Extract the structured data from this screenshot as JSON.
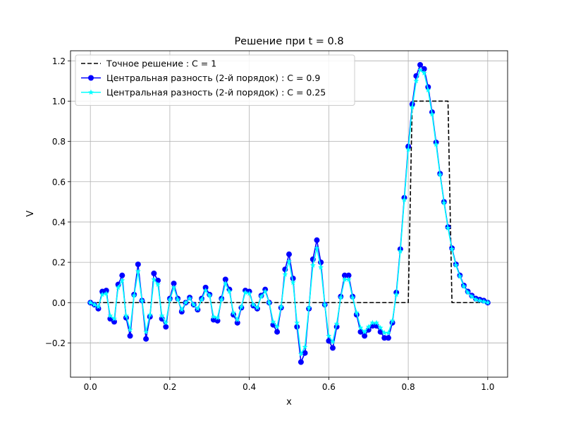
{
  "chart_data": {
    "type": "line",
    "title": "Решение при t = 0.8",
    "xlabel": "x",
    "ylabel": "V",
    "xlim": [
      -0.05,
      1.05
    ],
    "ylim": [
      -0.37,
      1.25
    ],
    "xticks": [
      0.0,
      0.2,
      0.4,
      0.6,
      0.8,
      1.0
    ],
    "xtick_labels": [
      "0.0",
      "0.2",
      "0.4",
      "0.6",
      "0.8",
      "1.0"
    ],
    "yticks": [
      -0.2,
      0.0,
      0.2,
      0.4,
      0.6,
      0.8,
      1.0,
      1.2
    ],
    "ytick_labels": [
      "−0.2",
      "0.0",
      "0.2",
      "0.4",
      "0.6",
      "0.8",
      "1.0",
      "1.2"
    ],
    "grid": true,
    "legend_position": "top-left",
    "series": [
      {
        "name": "Точное решение : C = 1",
        "color": "#000000",
        "style": "dashed",
        "marker": "none",
        "x": [
          0.0,
          0.8,
          0.81,
          0.9,
          0.91,
          1.0
        ],
        "y": [
          0.0,
          0.0,
          1.0,
          1.0,
          0.0,
          0.0
        ]
      },
      {
        "name": "Центральная разность (2-й порядок) : C = 0.9",
        "color": "#0000ff",
        "style": "solid",
        "marker": "circle",
        "x": [
          0.0,
          0.01,
          0.02,
          0.03,
          0.04,
          0.05,
          0.06,
          0.07,
          0.08,
          0.09,
          0.1,
          0.11,
          0.12,
          0.13,
          0.14,
          0.15,
          0.16,
          0.17,
          0.18,
          0.19,
          0.2,
          0.21,
          0.22,
          0.23,
          0.24,
          0.25,
          0.26,
          0.27,
          0.28,
          0.29,
          0.3,
          0.31,
          0.32,
          0.33,
          0.34,
          0.35,
          0.36,
          0.37,
          0.38,
          0.39,
          0.4,
          0.41,
          0.42,
          0.43,
          0.44,
          0.45,
          0.46,
          0.47,
          0.48,
          0.49,
          0.5,
          0.51,
          0.52,
          0.53,
          0.54,
          0.55,
          0.56,
          0.57,
          0.58,
          0.59,
          0.6,
          0.61,
          0.62,
          0.63,
          0.64,
          0.65,
          0.66,
          0.67,
          0.68,
          0.69,
          0.7,
          0.71,
          0.72,
          0.73,
          0.74,
          0.75,
          0.76,
          0.77,
          0.78,
          0.79,
          0.8,
          0.81,
          0.82,
          0.83,
          0.84,
          0.85,
          0.86,
          0.87,
          0.88,
          0.89,
          0.9,
          0.91,
          0.92,
          0.93,
          0.94,
          0.95,
          0.96,
          0.97,
          0.98,
          0.99,
          1.0
        ],
        "y": [
          0.0,
          -0.01,
          -0.03,
          0.055,
          0.06,
          -0.08,
          -0.095,
          0.09,
          0.135,
          -0.075,
          -0.165,
          0.04,
          0.19,
          0.01,
          -0.18,
          -0.07,
          0.145,
          0.11,
          -0.08,
          -0.12,
          0.02,
          0.095,
          0.02,
          -0.045,
          0.0,
          0.025,
          -0.01,
          -0.035,
          0.02,
          0.075,
          0.04,
          -0.085,
          -0.09,
          0.02,
          0.115,
          0.065,
          -0.06,
          -0.1,
          -0.025,
          0.06,
          0.055,
          -0.015,
          -0.03,
          0.035,
          0.065,
          0.0,
          -0.11,
          -0.145,
          -0.025,
          0.165,
          0.24,
          0.12,
          -0.12,
          -0.295,
          -0.25,
          -0.03,
          0.215,
          0.31,
          0.2,
          -0.01,
          -0.19,
          -0.225,
          -0.12,
          0.03,
          0.135,
          0.135,
          0.03,
          -0.06,
          -0.145,
          -0.165,
          -0.135,
          -0.115,
          -0.115,
          -0.145,
          -0.175,
          -0.175,
          -0.1,
          0.05,
          0.265,
          0.52,
          0.775,
          0.985,
          1.125,
          1.18,
          1.16,
          1.07,
          0.945,
          0.795,
          0.64,
          0.5,
          0.375,
          0.27,
          0.19,
          0.135,
          0.085,
          0.055,
          0.035,
          0.02,
          0.015,
          0.01,
          0.0
        ]
      },
      {
        "name": "Центральная разность (2-й порядок) : C = 0.25",
        "color": "#00ffff",
        "style": "solid",
        "marker": "star",
        "x": [
          0.0,
          0.01,
          0.02,
          0.03,
          0.04,
          0.05,
          0.06,
          0.07,
          0.08,
          0.09,
          0.1,
          0.11,
          0.12,
          0.13,
          0.14,
          0.15,
          0.16,
          0.17,
          0.18,
          0.19,
          0.2,
          0.21,
          0.22,
          0.23,
          0.24,
          0.25,
          0.26,
          0.27,
          0.28,
          0.29,
          0.3,
          0.31,
          0.32,
          0.33,
          0.34,
          0.35,
          0.36,
          0.37,
          0.38,
          0.39,
          0.4,
          0.41,
          0.42,
          0.43,
          0.44,
          0.45,
          0.46,
          0.47,
          0.48,
          0.49,
          0.5,
          0.51,
          0.52,
          0.53,
          0.54,
          0.55,
          0.56,
          0.57,
          0.58,
          0.59,
          0.6,
          0.61,
          0.62,
          0.63,
          0.64,
          0.65,
          0.66,
          0.67,
          0.68,
          0.69,
          0.7,
          0.71,
          0.72,
          0.73,
          0.74,
          0.75,
          0.76,
          0.77,
          0.78,
          0.79,
          0.8,
          0.81,
          0.82,
          0.83,
          0.84,
          0.85,
          0.86,
          0.87,
          0.88,
          0.89,
          0.9,
          0.91,
          0.92,
          0.93,
          0.94,
          0.95,
          0.96,
          0.97,
          0.98,
          0.99,
          1.0
        ],
        "y": [
          0.0,
          -0.01,
          -0.02,
          0.04,
          0.045,
          -0.065,
          -0.08,
          0.075,
          0.11,
          -0.065,
          -0.135,
          0.035,
          0.155,
          0.01,
          -0.145,
          -0.06,
          0.115,
          0.09,
          -0.065,
          -0.1,
          0.015,
          0.075,
          0.015,
          -0.035,
          0.0,
          0.02,
          -0.01,
          -0.03,
          0.015,
          0.06,
          0.035,
          -0.07,
          -0.075,
          0.015,
          0.095,
          0.055,
          -0.05,
          -0.085,
          -0.02,
          0.05,
          0.045,
          -0.01,
          -0.025,
          0.03,
          0.055,
          0.0,
          -0.095,
          -0.12,
          -0.02,
          0.14,
          0.205,
          0.1,
          -0.1,
          -0.255,
          -0.22,
          -0.025,
          0.185,
          0.27,
          0.175,
          -0.01,
          -0.165,
          -0.195,
          -0.105,
          0.025,
          0.115,
          0.115,
          0.025,
          -0.05,
          -0.125,
          -0.145,
          -0.12,
          -0.1,
          -0.1,
          -0.125,
          -0.15,
          -0.15,
          -0.09,
          0.04,
          0.255,
          0.51,
          0.76,
          0.97,
          1.1,
          1.155,
          1.14,
          1.055,
          0.935,
          0.785,
          0.635,
          0.495,
          0.37,
          0.265,
          0.185,
          0.13,
          0.08,
          0.05,
          0.03,
          0.015,
          0.01,
          0.005,
          0.0
        ]
      }
    ]
  }
}
